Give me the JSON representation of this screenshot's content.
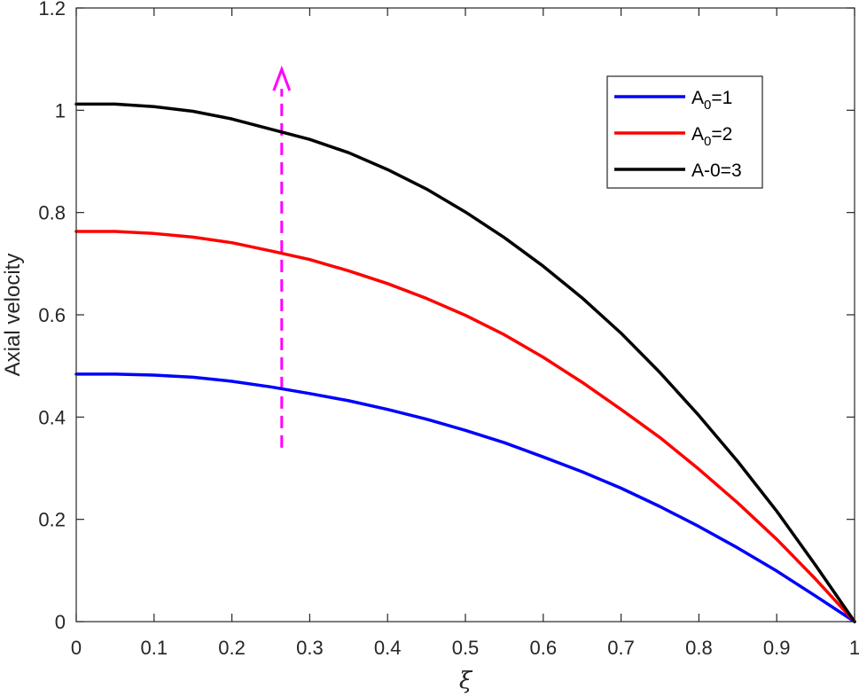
{
  "chart_data": {
    "type": "line",
    "title": "",
    "xlabel": "ξ",
    "ylabel": "Axial velocity",
    "xlim": [
      0,
      1
    ],
    "ylim": [
      0,
      1.2
    ],
    "x_ticks": [
      "0",
      "0.1",
      "0.2",
      "0.3",
      "0.4",
      "0.5",
      "0.6",
      "0.7",
      "0.8",
      "0.9",
      "1"
    ],
    "y_ticks": [
      "0",
      "0.2",
      "0.4",
      "0.6",
      "0.8",
      "1",
      "1.2"
    ],
    "grid": false,
    "legend_position": "top-right",
    "x": [
      0,
      0.05,
      0.1,
      0.15,
      0.2,
      0.25,
      0.3,
      0.35,
      0.4,
      0.45,
      0.5,
      0.55,
      0.6,
      0.65,
      0.7,
      0.75,
      0.8,
      0.85,
      0.9,
      0.95,
      1.0
    ],
    "series": [
      {
        "legend_main": "A",
        "legend_sub": "0",
        "legend_rest": "=1",
        "color": "#0000ff",
        "values": [
          0.484,
          0.484,
          0.482,
          0.478,
          0.47,
          0.459,
          0.446,
          0.432,
          0.415,
          0.396,
          0.374,
          0.35,
          0.322,
          0.293,
          0.261,
          0.225,
          0.186,
          0.144,
          0.099,
          0.05,
          0.0
        ]
      },
      {
        "legend_main": "A",
        "legend_sub": "0",
        "legend_rest": "=2",
        "color": "#ff0000",
        "values": [
          0.763,
          0.763,
          0.759,
          0.752,
          0.741,
          0.725,
          0.708,
          0.686,
          0.661,
          0.632,
          0.599,
          0.561,
          0.517,
          0.468,
          0.415,
          0.36,
          0.298,
          0.232,
          0.161,
          0.083,
          0.0
        ]
      },
      {
        "legend_main": "A-0=3",
        "legend_sub": "",
        "legend_rest": "",
        "color": "#000000",
        "values": [
          1.012,
          1.012,
          1.007,
          0.998,
          0.983,
          0.963,
          0.943,
          0.917,
          0.884,
          0.846,
          0.801,
          0.751,
          0.695,
          0.633,
          0.564,
          0.487,
          0.403,
          0.313,
          0.216,
          0.11,
          0.0
        ]
      }
    ],
    "annotations": [
      {
        "type": "dashed-arrow",
        "color": "#ff00ff",
        "x": 0.264,
        "y_start": 0.34,
        "y_end": 1.08
      }
    ]
  }
}
